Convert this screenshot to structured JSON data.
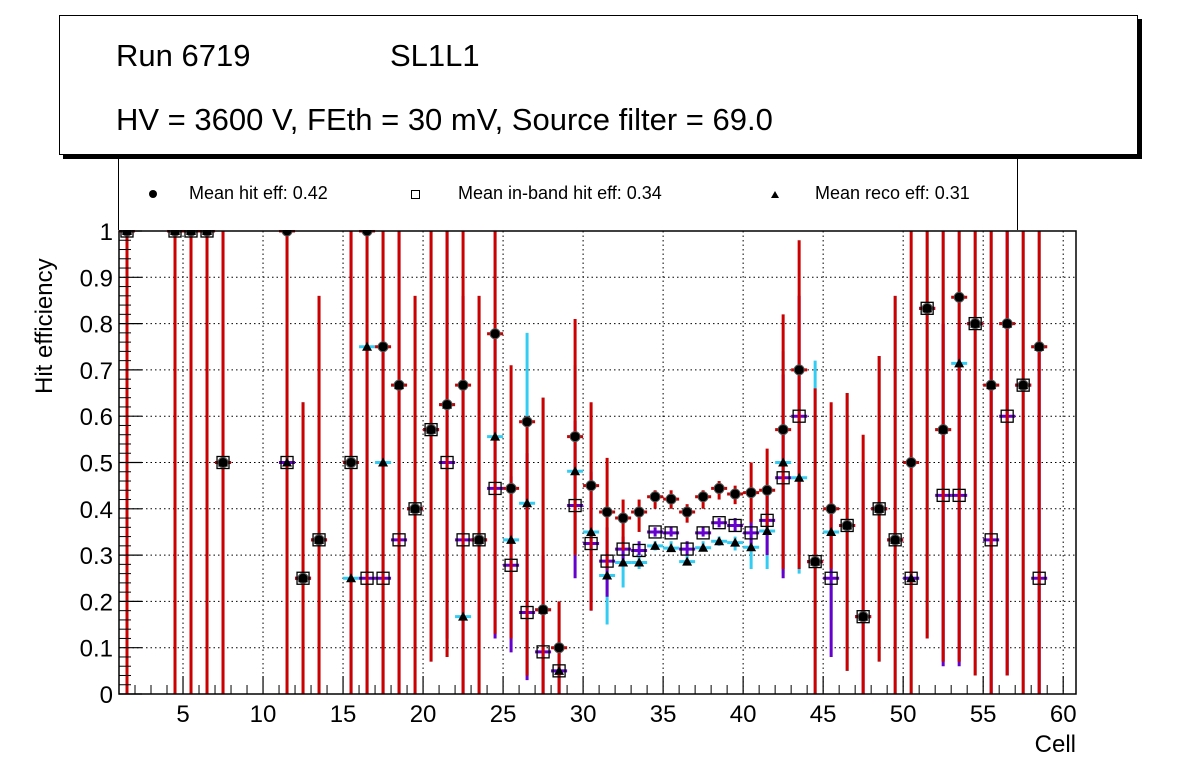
{
  "header": {
    "run_label": "Run 6719",
    "layer_label": "SL1L1",
    "conditions": "HV = 3600 V, FEth = 30 mV, Source filter = 69.0"
  },
  "legend": [
    {
      "marker": "filled-circle",
      "label": "Mean hit  eff: 0.42"
    },
    {
      "marker": "open-square",
      "label": "Mean in-band hit eff: 0.34"
    },
    {
      "marker": "filled-triangle",
      "label": "Mean reco eff: 0.31"
    }
  ],
  "colors": {
    "err_cyan": "#33ccf2",
    "err_purple": "#6600cc",
    "err_red": "#cc0000",
    "marker": "#000000"
  },
  "chart_data": {
    "type": "scatter",
    "title": "Run 6719 SL1L1 — HV = 3600 V, FEth = 30 mV, Source filter = 69.0",
    "xlabel": "Cell",
    "ylabel": "Hit efficiency",
    "xlim": [
      1,
      60.8
    ],
    "ylim": [
      0,
      1
    ],
    "xticks": [
      5,
      10,
      15,
      20,
      25,
      30,
      35,
      40,
      45,
      50,
      55,
      60
    ],
    "yticks": [
      "0",
      "0.1",
      "0.2",
      "0.3",
      "0.4",
      "0.5",
      "0.6",
      "0.7",
      "0.8",
      "0.9",
      "1"
    ],
    "grid": true,
    "legend_position": "top",
    "series": [
      {
        "name": "Mean hit eff",
        "marker": "filled-circle",
        "mean": 0.42,
        "err_color": "red",
        "points": [
          {
            "x": 1.5,
            "y": 1.0,
            "lo": 0.0,
            "hi": 1.0
          },
          {
            "x": 4.5,
            "y": 1.0,
            "lo": 0.0,
            "hi": 1.0
          },
          {
            "x": 5.5,
            "y": 1.0,
            "lo": 0.0,
            "hi": 1.0
          },
          {
            "x": 6.5,
            "y": 1.0,
            "lo": 0.0,
            "hi": 1.0
          },
          {
            "x": 7.5,
            "y": 0.5,
            "lo": 0.0,
            "hi": 1.0
          },
          {
            "x": 11.5,
            "y": 1.0,
            "lo": 0.0,
            "hi": 1.0
          },
          {
            "x": 12.5,
            "y": 0.25,
            "lo": 0.0,
            "hi": 0.63
          },
          {
            "x": 13.5,
            "y": 0.333,
            "lo": 0.0,
            "hi": 0.86
          },
          {
            "x": 15.5,
            "y": 0.5,
            "lo": 0.0,
            "hi": 1.0
          },
          {
            "x": 16.5,
            "y": 1.0,
            "lo": 0.0,
            "hi": 1.0
          },
          {
            "x": 17.5,
            "y": 0.75,
            "lo": 0.0,
            "hi": 1.0
          },
          {
            "x": 18.5,
            "y": 0.667,
            "lo": 0.0,
            "hi": 1.0
          },
          {
            "x": 19.5,
            "y": 0.4,
            "lo": 0.0,
            "hi": 0.86
          },
          {
            "x": 20.5,
            "y": 0.571,
            "lo": 0.07,
            "hi": 1.0
          },
          {
            "x": 21.5,
            "y": 0.625,
            "lo": 0.08,
            "hi": 1.0
          },
          {
            "x": 22.5,
            "y": 0.667,
            "lo": 0.0,
            "hi": 1.0
          },
          {
            "x": 23.5,
            "y": 0.333,
            "lo": 0.0,
            "hi": 0.86
          },
          {
            "x": 24.5,
            "y": 0.778,
            "lo": 0.13,
            "hi": 1.0
          },
          {
            "x": 25.5,
            "y": 0.444,
            "lo": 0.12,
            "hi": 0.71
          },
          {
            "x": 26.5,
            "y": 0.588,
            "lo": 0.04,
            "hi": 0.6
          },
          {
            "x": 27.5,
            "y": 0.182,
            "lo": 0.0,
            "hi": 0.64
          },
          {
            "x": 28.5,
            "y": 0.1,
            "lo": 0.0,
            "hi": 0.2
          },
          {
            "x": 29.5,
            "y": 0.556,
            "lo": 0.3,
            "hi": 0.81
          },
          {
            "x": 30.5,
            "y": 0.45,
            "lo": 0.18,
            "hi": 0.63
          },
          {
            "x": 31.5,
            "y": 0.393,
            "lo": 0.27,
            "hi": 0.51
          },
          {
            "x": 32.5,
            "y": 0.38,
            "lo": 0.31,
            "hi": 0.42
          },
          {
            "x": 33.5,
            "y": 0.393,
            "lo": 0.35,
            "hi": 0.42
          },
          {
            "x": 34.5,
            "y": 0.426,
            "lo": 0.4,
            "hi": 0.44
          },
          {
            "x": 35.5,
            "y": 0.421,
            "lo": 0.4,
            "hi": 0.44
          },
          {
            "x": 36.5,
            "y": 0.393,
            "lo": 0.37,
            "hi": 0.41
          },
          {
            "x": 37.5,
            "y": 0.426,
            "lo": 0.4,
            "hi": 0.44
          },
          {
            "x": 38.5,
            "y": 0.444,
            "lo": 0.42,
            "hi": 0.46
          },
          {
            "x": 39.5,
            "y": 0.432,
            "lo": 0.41,
            "hi": 0.45
          },
          {
            "x": 40.5,
            "y": 0.435,
            "lo": 0.37,
            "hi": 0.5
          },
          {
            "x": 41.5,
            "y": 0.44,
            "lo": 0.35,
            "hi": 0.53
          },
          {
            "x": 42.5,
            "y": 0.571,
            "lo": 0.27,
            "hi": 0.82
          },
          {
            "x": 43.5,
            "y": 0.7,
            "lo": 0.27,
            "hi": 0.98
          },
          {
            "x": 44.5,
            "y": 0.286,
            "lo": 0.0,
            "hi": 0.66
          },
          {
            "x": 45.5,
            "y": 0.4,
            "lo": 0.27,
            "hi": 0.63
          },
          {
            "x": 46.5,
            "y": 0.364,
            "lo": 0.05,
            "hi": 0.65
          },
          {
            "x": 47.5,
            "y": 0.167,
            "lo": 0.0,
            "hi": 0.56
          },
          {
            "x": 48.5,
            "y": 0.4,
            "lo": 0.07,
            "hi": 0.73
          },
          {
            "x": 49.5,
            "y": 0.333,
            "lo": 0.0,
            "hi": 0.86
          },
          {
            "x": 50.5,
            "y": 0.5,
            "lo": 0.0,
            "hi": 1.0
          },
          {
            "x": 51.5,
            "y": 0.833,
            "lo": 0.12,
            "hi": 1.0
          },
          {
            "x": 52.5,
            "y": 0.571,
            "lo": 0.07,
            "hi": 1.0
          },
          {
            "x": 53.5,
            "y": 0.857,
            "lo": 0.07,
            "hi": 1.0
          },
          {
            "x": 54.5,
            "y": 0.8,
            "lo": 0.04,
            "hi": 1.0
          },
          {
            "x": 55.5,
            "y": 0.667,
            "lo": 0.0,
            "hi": 1.0
          },
          {
            "x": 56.5,
            "y": 0.8,
            "lo": 0.04,
            "hi": 1.0
          },
          {
            "x": 57.5,
            "y": 0.667,
            "lo": 0.0,
            "hi": 1.0
          },
          {
            "x": 58.5,
            "y": 0.75,
            "lo": 0.0,
            "hi": 1.0
          }
        ]
      },
      {
        "name": "Mean in-band hit eff",
        "marker": "open-square",
        "mean": 0.34,
        "err_color": "purple",
        "points": [
          {
            "x": 1.5,
            "y": 1.0
          },
          {
            "x": 4.5,
            "y": 1.0
          },
          {
            "x": 5.5,
            "y": 1.0
          },
          {
            "x": 6.5,
            "y": 1.0
          },
          {
            "x": 7.5,
            "y": 0.5,
            "lo": 0.0,
            "hi": 1.0
          },
          {
            "x": 11.5,
            "y": 0.5
          },
          {
            "x": 12.5,
            "y": 0.25
          },
          {
            "x": 13.5,
            "y": 0.333
          },
          {
            "x": 15.5,
            "y": 0.5,
            "lo": 0.0,
            "hi": 1.0
          },
          {
            "x": 16.5,
            "y": 0.25,
            "lo": 0.0,
            "hi": 0.75
          },
          {
            "x": 17.5,
            "y": 0.25,
            "lo": 0.0,
            "hi": 0.75
          },
          {
            "x": 18.5,
            "y": 0.333,
            "lo": 0.0,
            "hi": 1.0
          },
          {
            "x": 19.5,
            "y": 0.4
          },
          {
            "x": 20.5,
            "y": 0.571
          },
          {
            "x": 21.5,
            "y": 0.5,
            "lo": 0.12,
            "hi": 1.0
          },
          {
            "x": 22.5,
            "y": 0.333,
            "lo": 0.0,
            "hi": 0.86
          },
          {
            "x": 23.5,
            "y": 0.333
          },
          {
            "x": 24.5,
            "y": 0.444,
            "lo": 0.12,
            "hi": 0.79
          },
          {
            "x": 25.5,
            "y": 0.278,
            "lo": 0.09,
            "hi": 0.47
          },
          {
            "x": 26.5,
            "y": 0.176,
            "lo": 0.03,
            "hi": 0.52
          },
          {
            "x": 27.5,
            "y": 0.091,
            "lo": 0.0,
            "hi": 0.3
          },
          {
            "x": 28.5,
            "y": 0.05,
            "lo": 0.0,
            "hi": 0.1
          },
          {
            "x": 29.5,
            "y": 0.407,
            "lo": 0.25,
            "hi": 0.59
          },
          {
            "x": 30.5,
            "y": 0.325,
            "lo": 0.18,
            "hi": 0.48
          },
          {
            "x": 31.5,
            "y": 0.287,
            "lo": 0.21,
            "hi": 0.36
          },
          {
            "x": 32.5,
            "y": 0.313,
            "lo": 0.29,
            "hi": 0.34
          },
          {
            "x": 33.5,
            "y": 0.31,
            "lo": 0.3,
            "hi": 0.33
          },
          {
            "x": 34.5,
            "y": 0.35,
            "lo": 0.34,
            "hi": 0.36
          },
          {
            "x": 35.5,
            "y": 0.348,
            "lo": 0.34,
            "hi": 0.36
          },
          {
            "x": 36.5,
            "y": 0.313,
            "lo": 0.3,
            "hi": 0.33
          },
          {
            "x": 37.5,
            "y": 0.348,
            "lo": 0.34,
            "hi": 0.36
          },
          {
            "x": 38.5,
            "y": 0.37,
            "lo": 0.36,
            "hi": 0.38
          },
          {
            "x": 39.5,
            "y": 0.364,
            "lo": 0.35,
            "hi": 0.38
          },
          {
            "x": 40.5,
            "y": 0.348,
            "lo": 0.31,
            "hi": 0.4
          },
          {
            "x": 41.5,
            "y": 0.375,
            "lo": 0.3,
            "hi": 0.45
          },
          {
            "x": 42.5,
            "y": 0.467,
            "lo": 0.25,
            "hi": 0.69
          },
          {
            "x": 43.5,
            "y": 0.6,
            "lo": 0.3,
            "hi": 0.86
          },
          {
            "x": 44.5,
            "y": 0.286
          },
          {
            "x": 45.5,
            "y": 0.25,
            "lo": 0.08,
            "hi": 0.4
          },
          {
            "x": 46.5,
            "y": 0.364
          },
          {
            "x": 47.5,
            "y": 0.167,
            "lo": 0.0,
            "hi": 0.5
          },
          {
            "x": 48.5,
            "y": 0.4
          },
          {
            "x": 49.5,
            "y": 0.333
          },
          {
            "x": 50.5,
            "y": 0.25
          },
          {
            "x": 51.5,
            "y": 0.833
          },
          {
            "x": 52.5,
            "y": 0.429,
            "lo": 0.06,
            "hi": 0.8
          },
          {
            "x": 53.5,
            "y": 0.429,
            "lo": 0.06,
            "hi": 0.8
          },
          {
            "x": 54.5,
            "y": 0.8
          },
          {
            "x": 55.5,
            "y": 0.333,
            "lo": 0.0,
            "hi": 0.8
          },
          {
            "x": 56.5,
            "y": 0.6,
            "lo": 0.04,
            "hi": 1.0
          },
          {
            "x": 57.5,
            "y": 0.667
          },
          {
            "x": 58.5,
            "y": 0.25,
            "lo": 0.0,
            "hi": 0.75
          }
        ]
      },
      {
        "name": "Mean reco eff",
        "marker": "filled-triangle",
        "mean": 0.31,
        "err_color": "cyan",
        "points": [
          {
            "x": 1.5,
            "y": 1.0,
            "lo": 0.0,
            "hi": 1.0
          },
          {
            "x": 4.5,
            "y": 1.0,
            "lo": 0.0,
            "hi": 1.0
          },
          {
            "x": 5.5,
            "y": 1.0,
            "lo": 0.0,
            "hi": 1.0
          },
          {
            "x": 6.5,
            "y": 1.0,
            "lo": 0.0,
            "hi": 1.0
          },
          {
            "x": 7.5,
            "y": 0.5
          },
          {
            "x": 11.5,
            "y": 0.5,
            "lo": 0.0,
            "hi": 1.0
          },
          {
            "x": 12.5,
            "y": 0.25,
            "lo": 0.0,
            "hi": 0.63
          },
          {
            "x": 13.5,
            "y": 0.333,
            "lo": 0.0,
            "hi": 0.86
          },
          {
            "x": 15.5,
            "y": 0.25,
            "lo": 0.0,
            "hi": 0.63
          },
          {
            "x": 16.5,
            "y": 0.75,
            "lo": 0.0,
            "hi": 1.0
          },
          {
            "x": 17.5,
            "y": 0.5,
            "lo": 0.0,
            "hi": 1.0
          },
          {
            "x": 18.5,
            "y": 0.667
          },
          {
            "x": 19.5,
            "y": 0.4,
            "lo": 0.0,
            "hi": 0.86
          },
          {
            "x": 20.5,
            "y": 0.571,
            "lo": 0.07,
            "hi": 1.0
          },
          {
            "x": 21.5,
            "y": 0.625,
            "lo": 0.08,
            "hi": 1.0
          },
          {
            "x": 22.5,
            "y": 0.167,
            "lo": 0.0,
            "hi": 0.6
          },
          {
            "x": 23.5,
            "y": 0.333,
            "lo": 0.0,
            "hi": 0.86
          },
          {
            "x": 24.5,
            "y": 0.556,
            "lo": 0.13,
            "hi": 1.0
          },
          {
            "x": 25.5,
            "y": 0.333,
            "lo": 0.12,
            "hi": 0.55
          },
          {
            "x": 26.5,
            "y": 0.412,
            "lo": 0.04,
            "hi": 0.78
          },
          {
            "x": 27.5,
            "y": 0.182,
            "lo": 0.0,
            "hi": 0.64
          },
          {
            "x": 28.5,
            "y": 0.05,
            "lo": 0.0,
            "hi": 0.2
          },
          {
            "x": 29.5,
            "y": 0.481,
            "lo": 0.3,
            "hi": 0.71
          },
          {
            "x": 30.5,
            "y": 0.35,
            "lo": 0.2,
            "hi": 0.5
          },
          {
            "x": 31.5,
            "y": 0.256,
            "lo": 0.15,
            "hi": 0.3
          },
          {
            "x": 32.5,
            "y": 0.284,
            "lo": 0.23,
            "hi": 0.32
          },
          {
            "x": 33.5,
            "y": 0.284,
            "lo": 0.27,
            "hi": 0.3
          },
          {
            "x": 34.5,
            "y": 0.32,
            "lo": 0.31,
            "hi": 0.33
          },
          {
            "x": 35.5,
            "y": 0.315,
            "lo": 0.31,
            "hi": 0.33
          },
          {
            "x": 36.5,
            "y": 0.286,
            "lo": 0.28,
            "hi": 0.3
          },
          {
            "x": 37.5,
            "y": 0.316,
            "lo": 0.31,
            "hi": 0.33
          },
          {
            "x": 38.5,
            "y": 0.33,
            "lo": 0.32,
            "hi": 0.34
          },
          {
            "x": 39.5,
            "y": 0.327,
            "lo": 0.31,
            "hi": 0.34
          },
          {
            "x": 40.5,
            "y": 0.317,
            "lo": 0.27,
            "hi": 0.37
          },
          {
            "x": 41.5,
            "y": 0.352,
            "lo": 0.27,
            "hi": 0.44
          },
          {
            "x": 42.5,
            "y": 0.5,
            "lo": 0.26,
            "hi": 0.74
          },
          {
            "x": 43.5,
            "y": 0.467,
            "lo": 0.26,
            "hi": 0.68
          },
          {
            "x": 44.5,
            "y": 0.286,
            "lo": 0.0,
            "hi": 0.72
          },
          {
            "x": 45.5,
            "y": 0.35,
            "lo": 0.16,
            "hi": 0.57
          },
          {
            "x": 46.5,
            "y": 0.364,
            "lo": 0.05,
            "hi": 0.65
          },
          {
            "x": 47.5,
            "y": 0.167
          },
          {
            "x": 48.5,
            "y": 0.4,
            "lo": 0.07,
            "hi": 0.73
          },
          {
            "x": 49.5,
            "y": 0.333,
            "lo": 0.0,
            "hi": 0.86
          },
          {
            "x": 50.5,
            "y": 0.25,
            "lo": 0.0,
            "hi": 0.63
          },
          {
            "x": 51.5,
            "y": 0.833,
            "lo": 0.12,
            "hi": 1.0
          },
          {
            "x": 52.5,
            "y": 0.571,
            "lo": 0.07,
            "hi": 1.0
          },
          {
            "x": 53.5,
            "y": 0.714,
            "lo": 0.07,
            "hi": 1.0
          },
          {
            "x": 54.5,
            "y": 0.8,
            "lo": 0.04,
            "hi": 1.0
          },
          {
            "x": 55.5,
            "y": 0.667,
            "lo": 0.0,
            "hi": 1.0
          },
          {
            "x": 56.5,
            "y": 0.8,
            "lo": 0.04,
            "hi": 1.0
          },
          {
            "x": 57.5,
            "y": 0.667,
            "lo": 0.0,
            "hi": 1.0
          },
          {
            "x": 58.5,
            "y": 0.75,
            "lo": 0.0,
            "hi": 1.0
          }
        ]
      }
    ]
  }
}
